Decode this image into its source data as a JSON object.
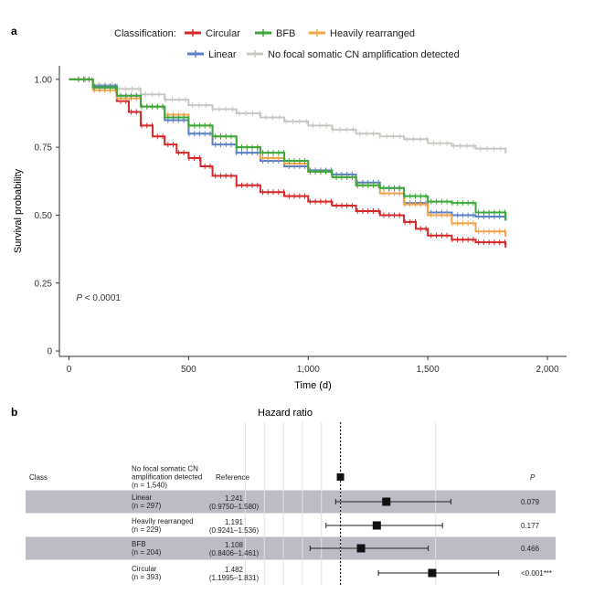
{
  "chart_data": [
    {
      "panel": "a",
      "type": "line",
      "subtype": "kaplan-meier",
      "title": "",
      "xlabel": "Time (d)",
      "ylabel": "Survival probability",
      "xlim": [
        -40,
        2080
      ],
      "ylim": [
        -0.02,
        1.05
      ],
      "xticks": [
        0,
        500,
        1000,
        1500,
        2000
      ],
      "xtick_labels": [
        "0",
        "500",
        "1,000",
        "1,500",
        "2,000"
      ],
      "yticks": [
        0,
        0.25,
        0.5,
        0.75,
        1.0
      ],
      "ytick_labels": [
        "0",
        "0.25",
        "0.50",
        "0.75",
        "1.00"
      ],
      "annotation": "P < 0.0001",
      "annotation_p": "P",
      "annotation_rest": " < 0.0001",
      "legend_title": "Classification:",
      "series": [
        {
          "name": "No focal somatic CN amplification detected",
          "color": "#c8c8c2",
          "x": [
            0,
            100,
            200,
            300,
            400,
            500,
            600,
            700,
            800,
            900,
            1000,
            1100,
            1200,
            1300,
            1400,
            1500,
            1600,
            1700,
            1825
          ],
          "y": [
            1.0,
            0.98,
            0.965,
            0.945,
            0.925,
            0.905,
            0.89,
            0.875,
            0.86,
            0.845,
            0.83,
            0.815,
            0.8,
            0.79,
            0.78,
            0.765,
            0.755,
            0.745,
            0.728
          ]
        },
        {
          "name": "Circular",
          "color": "#d62728",
          "x": [
            0,
            100,
            200,
            250,
            300,
            350,
            400,
            450,
            500,
            550,
            600,
            700,
            800,
            900,
            1000,
            1100,
            1200,
            1300,
            1400,
            1450,
            1500,
            1600,
            1700,
            1825
          ],
          "y": [
            1.0,
            0.97,
            0.92,
            0.88,
            0.83,
            0.79,
            0.76,
            0.73,
            0.71,
            0.68,
            0.645,
            0.61,
            0.585,
            0.57,
            0.55,
            0.535,
            0.515,
            0.5,
            0.475,
            0.45,
            0.425,
            0.41,
            0.4,
            0.38
          ]
        },
        {
          "name": "Linear",
          "color": "#5b7fc7",
          "x": [
            0,
            100,
            200,
            300,
            400,
            500,
            600,
            700,
            800,
            900,
            1000,
            1100,
            1200,
            1300,
            1400,
            1500,
            1600,
            1700,
            1825
          ],
          "y": [
            1.0,
            0.975,
            0.94,
            0.9,
            0.85,
            0.8,
            0.76,
            0.73,
            0.7,
            0.68,
            0.665,
            0.65,
            0.62,
            0.6,
            0.545,
            0.51,
            0.5,
            0.495,
            0.48
          ]
        },
        {
          "name": "Heavily rearranged",
          "color": "#f2a54a",
          "x": [
            0,
            100,
            200,
            300,
            400,
            500,
            600,
            700,
            800,
            900,
            1000,
            1100,
            1200,
            1300,
            1400,
            1500,
            1600,
            1700,
            1825
          ],
          "y": [
            1.0,
            0.96,
            0.93,
            0.9,
            0.87,
            0.83,
            0.79,
            0.75,
            0.71,
            0.69,
            0.66,
            0.64,
            0.61,
            0.58,
            0.54,
            0.5,
            0.47,
            0.44,
            0.42
          ]
        },
        {
          "name": "BFB",
          "color": "#3aa83a",
          "x": [
            0,
            100,
            200,
            300,
            400,
            500,
            600,
            700,
            800,
            900,
            1000,
            1100,
            1200,
            1300,
            1400,
            1500,
            1600,
            1700,
            1825
          ],
          "y": [
            1.0,
            0.97,
            0.94,
            0.9,
            0.86,
            0.83,
            0.79,
            0.75,
            0.73,
            0.7,
            0.66,
            0.64,
            0.61,
            0.6,
            0.57,
            0.55,
            0.545,
            0.51,
            0.48
          ]
        }
      ],
      "legend_order": [
        1,
        4,
        3,
        2,
        0
      ]
    },
    {
      "panel": "b",
      "type": "forest",
      "title": "Hazard ratio",
      "class_header": "Class",
      "p_header": "P",
      "reference_line": 1.0,
      "xlim": [
        0.45,
        1.9
      ],
      "gridlines": [
        0.5,
        0.6,
        0.7,
        0.8,
        0.9,
        1.0,
        1.5
      ],
      "rows": [
        {
          "name": "No focal somatic CN amplification detected",
          "name_lines": [
            "No focal somatic CN",
            "amplification detected"
          ],
          "n": "(n = 1,540)",
          "hr_text": "Reference",
          "ci_text": "",
          "hr": 1.0,
          "lo": null,
          "hi": null,
          "p": "",
          "shaded": false
        },
        {
          "name": "Linear",
          "name_lines": [
            "Linear"
          ],
          "n": "(n = 297)",
          "hr_text": "1.241",
          "ci_text": "(0.9750–1.580)",
          "hr": 1.241,
          "lo": 0.975,
          "hi": 1.58,
          "p": "0.079",
          "shaded": true
        },
        {
          "name": "Heavily rearranged",
          "name_lines": [
            "Heavily rearranged"
          ],
          "n": "(n = 229)",
          "hr_text": "1.191",
          "ci_text": "(0.9241–1.536)",
          "hr": 1.191,
          "lo": 0.9241,
          "hi": 1.536,
          "p": "0.177",
          "shaded": false
        },
        {
          "name": "BFB",
          "name_lines": [
            "BFB"
          ],
          "n": "(n = 204)",
          "hr_text": "1.108",
          "ci_text": "(0.8406–1.461)",
          "hr": 1.108,
          "lo": 0.8406,
          "hi": 1.461,
          "p": "0.466",
          "shaded": true
        },
        {
          "name": "Circular",
          "name_lines": [
            "Circular"
          ],
          "n": "(n = 393)",
          "hr_text": "1.482",
          "ci_text": "(1.1995–1.831)",
          "hr": 1.482,
          "lo": 1.1995,
          "hi": 1.831,
          "p": "<0.001***",
          "shaded": false
        }
      ]
    }
  ],
  "colors": {
    "shade": "#bdbcc6",
    "axis": "#333333"
  }
}
